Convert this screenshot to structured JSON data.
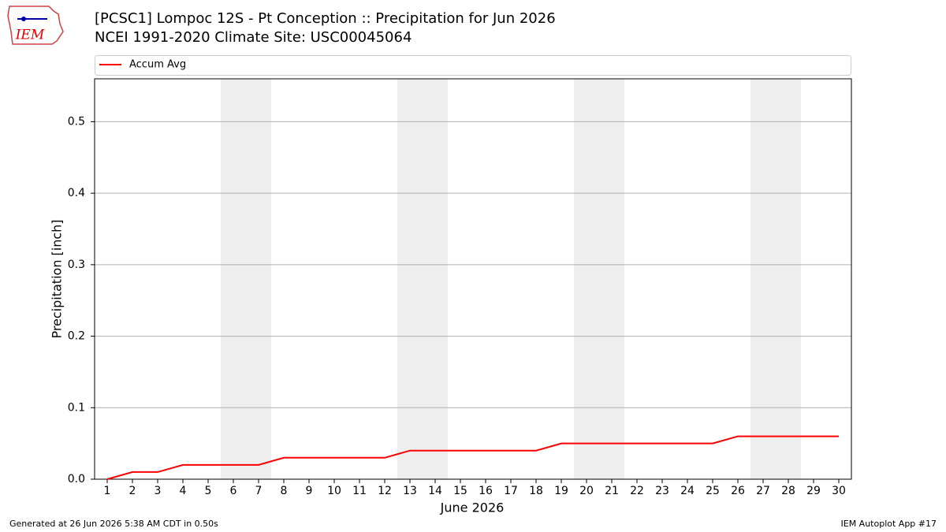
{
  "chart_data": {
    "type": "line",
    "title": "[PCSC1] Lompoc 12S - Pt Conception :: Precipitation for Jun 2026",
    "subtitle": "NCEI 1991-2020 Climate Site: USC00045064",
    "logo_text": "IEM",
    "xlabel": "June 2026",
    "ylabel": "Precipitation [inch]",
    "x": [
      1,
      2,
      3,
      4,
      5,
      6,
      7,
      8,
      9,
      10,
      11,
      12,
      13,
      14,
      15,
      16,
      17,
      18,
      19,
      20,
      21,
      22,
      23,
      24,
      25,
      26,
      27,
      28,
      29,
      30
    ],
    "series": [
      {
        "name": "Accum Avg",
        "color": "#ff0000",
        "values": [
          0,
          0.01,
          0.01,
          0.02,
          0.02,
          0.02,
          0.02,
          0.03,
          0.03,
          0.03,
          0.03,
          0.03,
          0.04,
          0.04,
          0.04,
          0.04,
          0.04,
          0.04,
          0.05,
          0.05,
          0.05,
          0.05,
          0.05,
          0.05,
          0.05,
          0.06,
          0.06,
          0.06,
          0.06,
          0.06
        ]
      }
    ],
    "shaded_spans": [
      [
        5.5,
        7.5
      ],
      [
        12.5,
        14.5
      ],
      [
        19.5,
        21.5
      ],
      [
        26.5,
        28.5
      ]
    ],
    "shade_color": "#eeeeee",
    "xlim": [
      0.5,
      30.5
    ],
    "xticks": [
      1,
      2,
      3,
      4,
      5,
      6,
      7,
      8,
      9,
      10,
      11,
      12,
      13,
      14,
      15,
      16,
      17,
      18,
      19,
      20,
      21,
      22,
      23,
      24,
      25,
      26,
      27,
      28,
      29,
      30
    ],
    "ylim": [
      0,
      0.56
    ],
    "yticks": [
      {
        "value": 0,
        "label": "0.0"
      },
      0.1,
      0.2,
      0.3,
      0.4,
      0.5
    ],
    "grid": true,
    "legend": "top",
    "footer_left": "Generated at 26 Jun 2026 5:38 AM CDT in 0.50s",
    "footer_right": "IEM Autoplot App #17"
  }
}
